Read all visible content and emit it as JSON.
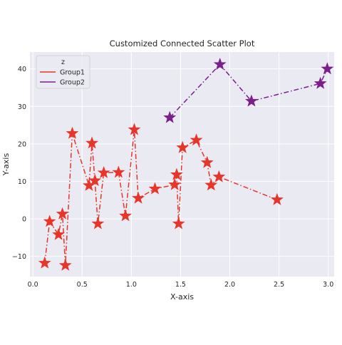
{
  "chart_data": {
    "type": "scatter",
    "title": "Customized Connected Scatter Plot",
    "xlabel": "X-axis",
    "ylabel": "Y-axis",
    "xlim": [
      -0.03,
      3.06
    ],
    "ylim": [
      -15.4,
      44.5
    ],
    "xticks": [
      0.0,
      0.5,
      1.0,
      1.5,
      2.0,
      2.5,
      3.0
    ],
    "xtick_labels": [
      "0.0",
      "0.5",
      "1.0",
      "1.5",
      "2.0",
      "2.5",
      "3.0"
    ],
    "yticks": [
      -10,
      0,
      10,
      20,
      30,
      40
    ],
    "ytick_labels": [
      "−10",
      "0",
      "10",
      "20",
      "30",
      "40"
    ],
    "grid": true,
    "legend": {
      "title": "z",
      "placement": "top-left"
    },
    "series": [
      {
        "name": "Group1",
        "color": "#e8352a",
        "marker": "star",
        "linestyle": "dash-dot",
        "points": [
          [
            0.12,
            -11.8
          ],
          [
            0.17,
            -0.7
          ],
          [
            0.26,
            -4.2
          ],
          [
            0.3,
            1.3
          ],
          [
            0.33,
            -12.4
          ],
          [
            0.4,
            22.8
          ],
          [
            0.57,
            8.9
          ],
          [
            0.6,
            20.2
          ],
          [
            0.63,
            10.2
          ],
          [
            0.66,
            -1.3
          ],
          [
            0.72,
            12.3
          ],
          [
            0.87,
            12.4
          ],
          [
            0.94,
            0.8
          ],
          [
            1.03,
            23.8
          ],
          [
            1.07,
            5.5
          ],
          [
            1.24,
            8.0
          ],
          [
            1.44,
            9.1
          ],
          [
            1.46,
            11.8
          ],
          [
            1.48,
            -1.3
          ],
          [
            1.52,
            19.0
          ],
          [
            1.66,
            21.0
          ],
          [
            1.77,
            15.0
          ],
          [
            1.81,
            9.0
          ],
          [
            1.89,
            11.2
          ],
          [
            2.48,
            5.1
          ]
        ]
      },
      {
        "name": "Group2",
        "color": "#7b1f8c",
        "marker": "star",
        "linestyle": "dash-dot",
        "points": [
          [
            1.39,
            27.0
          ],
          [
            1.9,
            41.2
          ],
          [
            2.22,
            31.4
          ],
          [
            2.92,
            36.1
          ],
          [
            2.99,
            40.0
          ]
        ]
      }
    ]
  }
}
